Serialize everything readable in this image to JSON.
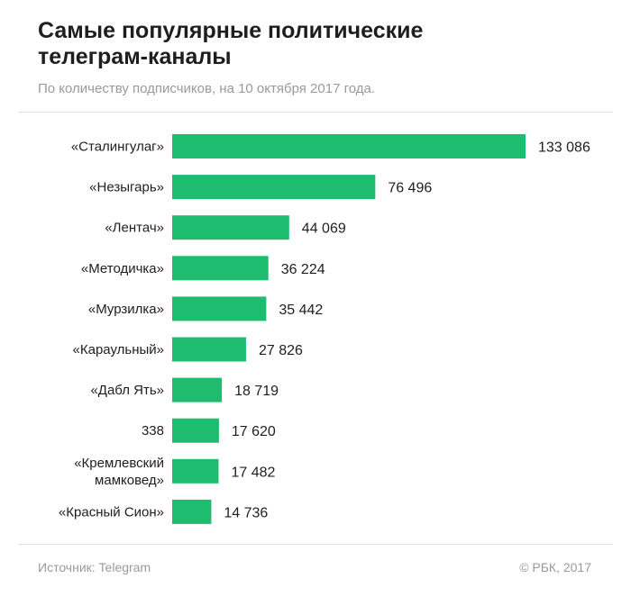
{
  "header": {
    "title": "Самые популярные политические\nтелеграм-каналы",
    "subtitle": "По количеству подписчиков, на 10 октября 2017 года."
  },
  "footer": {
    "source": "Источник: Telegram",
    "copyright": "© РБК, 2017"
  },
  "colors": {
    "bar": "#1ebc6e",
    "label": "#1e1e1e",
    "muted": "#9a9a9a"
  },
  "chart_data": {
    "type": "bar",
    "orientation": "horizontal",
    "categories": [
      "«Сталингулаг»",
      "«Незыгарь»",
      "«Лентач»",
      "«Методичка»",
      "«Мурзилка»",
      "«Караульный»",
      "«Дабл Ять»",
      "338",
      "«Кремлевский\nмамковед»",
      "«Красный Сион»"
    ],
    "values": [
      133086,
      76496,
      44069,
      36224,
      35442,
      27826,
      18719,
      17620,
      17482,
      14736
    ],
    "value_labels": [
      "133 086",
      "76 496",
      "44 069",
      "36 224",
      "35 442",
      "27 826",
      "18 719",
      "17 620",
      "17 482",
      "14 736"
    ],
    "xlim": [
      0,
      133086
    ],
    "grid": false,
    "legend": "none"
  }
}
